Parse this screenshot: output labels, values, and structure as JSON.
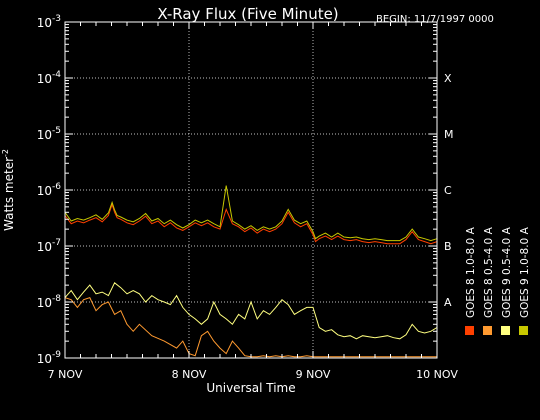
{
  "colors": {
    "background": "#000000",
    "axes": "#ffffff",
    "goes8_long": "#ff4000",
    "goes8_short": "#ff9a30",
    "goes9_short": "#ffff80",
    "goes9_long": "#c8c800"
  },
  "chart_data": {
    "type": "line",
    "title": "X-Ray Flux (Five Minute)",
    "begin_label": "BEGIN: 11/7/1997 0000",
    "ylabel": "Watts meter",
    "ylabel_superscript": "-2",
    "xlabel": "Universal Time",
    "y_scale": "log",
    "ylim": [
      1e-09,
      0.001
    ],
    "y_ticks": [
      {
        "value": 1e-09,
        "base": "10",
        "exp": "-9"
      },
      {
        "value": 1e-08,
        "base": "10",
        "exp": "-8"
      },
      {
        "value": 1e-07,
        "base": "10",
        "exp": "-7"
      },
      {
        "value": 1e-06,
        "base": "10",
        "exp": "-6"
      },
      {
        "value": 1e-05,
        "base": "10",
        "exp": "-5"
      },
      {
        "value": 0.0001,
        "base": "10",
        "exp": "-4"
      },
      {
        "value": 0.001,
        "base": "10",
        "exp": "-3"
      }
    ],
    "x_unit": "day",
    "xlim": [
      0,
      3
    ],
    "x_ticks": [
      {
        "value": 0,
        "label": "7 NOV"
      },
      {
        "value": 1,
        "label": "8 NOV"
      },
      {
        "value": 2,
        "label": "9 NOV"
      },
      {
        "value": 3,
        "label": "10 NOV"
      }
    ],
    "flare_classes": [
      {
        "label": "X",
        "value": 0.0001
      },
      {
        "label": "M",
        "value": 1e-05
      },
      {
        "label": "C",
        "value": 1e-06
      },
      {
        "label": "B",
        "value": 1e-07
      },
      {
        "label": "A",
        "value": 1e-08
      }
    ],
    "grid": true,
    "legend_position": "right",
    "series": [
      {
        "name": "GOES 8 1.0-8.0 A",
        "color_key": "goes8_long",
        "x": [
          0,
          0.05,
          0.1,
          0.15,
          0.2,
          0.25,
          0.3,
          0.35,
          0.38,
          0.4,
          0.42,
          0.45,
          0.5,
          0.55,
          0.6,
          0.65,
          0.7,
          0.75,
          0.8,
          0.85,
          0.9,
          0.95,
          1.0,
          1.05,
          1.1,
          1.15,
          1.2,
          1.25,
          1.3,
          1.35,
          1.4,
          1.45,
          1.5,
          1.55,
          1.6,
          1.65,
          1.7,
          1.75,
          1.8,
          1.85,
          1.9,
          1.95,
          2.0,
          2.02,
          2.05,
          2.1,
          2.15,
          2.2,
          2.25,
          2.3,
          2.35,
          2.4,
          2.45,
          2.5,
          2.55,
          2.6,
          2.65,
          2.7,
          2.75,
          2.8,
          2.85,
          2.9,
          2.95,
          3.0
        ],
        "y": [
          3.5e-07,
          2.5e-07,
          2.8e-07,
          2.6e-07,
          2.9e-07,
          3.2e-07,
          2.7e-07,
          3.5e-07,
          5.5e-07,
          4e-07,
          3.2e-07,
          3e-07,
          2.6e-07,
          2.4e-07,
          2.8e-07,
          3.4e-07,
          2.5e-07,
          2.8e-07,
          2.2e-07,
          2.6e-07,
          2.1e-07,
          1.9e-07,
          2.2e-07,
          2.6e-07,
          2.3e-07,
          2.6e-07,
          2.2e-07,
          2e-07,
          4.5e-07,
          2.5e-07,
          2.2e-07,
          1.8e-07,
          2.1e-07,
          1.7e-07,
          2e-07,
          1.8e-07,
          2e-07,
          2.5e-07,
          4e-07,
          2.6e-07,
          2.2e-07,
          2.5e-07,
          1.6e-07,
          1.2e-07,
          1.35e-07,
          1.5e-07,
          1.3e-07,
          1.5e-07,
          1.3e-07,
          1.25e-07,
          1.3e-07,
          1.2e-07,
          1.15e-07,
          1.2e-07,
          1.15e-07,
          1.1e-07,
          1.1e-07,
          1.1e-07,
          1.3e-07,
          1.8e-07,
          1.3e-07,
          1.2e-07,
          1.1e-07,
          1.2e-07
        ]
      },
      {
        "name": "GOES 8 0.5-4.0 A",
        "color_key": "goes8_short",
        "x": [
          0,
          0.05,
          0.1,
          0.15,
          0.2,
          0.25,
          0.3,
          0.35,
          0.4,
          0.45,
          0.5,
          0.55,
          0.6,
          0.7,
          0.8,
          0.9,
          0.95,
          1.0,
          1.05,
          1.1,
          1.15,
          1.2,
          1.25,
          1.3,
          1.35,
          1.4,
          1.45,
          1.5,
          1.55,
          1.6,
          1.65,
          1.7,
          1.75,
          1.8,
          1.85,
          1.9,
          1.95,
          2.0,
          2.05,
          2.1,
          2.2,
          2.3,
          2.35,
          2.4,
          2.5,
          2.6,
          2.7,
          2.75,
          2.8,
          2.9,
          3.0
        ],
        "y": [
          1.2e-08,
          1.1e-08,
          8e-09,
          1.1e-08,
          1.2e-08,
          7e-09,
          9e-09,
          1e-08,
          6e-09,
          7e-09,
          4e-09,
          3e-09,
          4e-09,
          2.5e-09,
          2e-09,
          1.5e-09,
          2e-09,
          1.2e-09,
          1.1e-09,
          2.5e-09,
          3e-09,
          2e-09,
          1.5e-09,
          1.2e-09,
          2e-09,
          1.5e-09,
          1.1e-09,
          1.05e-09,
          1.05e-09,
          1.1e-09,
          1.05e-09,
          1.1e-09,
          1.05e-09,
          1.1e-09,
          1.05e-09,
          1.05e-09,
          1.1e-09,
          1.05e-09,
          1.05e-09,
          1.05e-09,
          1.05e-09,
          1.05e-09,
          1.05e-09,
          1.05e-09,
          1.05e-09,
          1.05e-09,
          1.05e-09,
          1.05e-09,
          1.05e-09,
          1.05e-09,
          1.05e-09
        ]
      },
      {
        "name": "GOES 9 0.5-4.0 A",
        "color_key": "goes9_short",
        "x": [
          0,
          0.05,
          0.1,
          0.15,
          0.2,
          0.25,
          0.3,
          0.35,
          0.4,
          0.45,
          0.5,
          0.55,
          0.6,
          0.65,
          0.7,
          0.75,
          0.8,
          0.85,
          0.9,
          0.95,
          1.0,
          1.05,
          1.1,
          1.15,
          1.2,
          1.25,
          1.3,
          1.35,
          1.4,
          1.45,
          1.5,
          1.55,
          1.6,
          1.65,
          1.7,
          1.75,
          1.8,
          1.85,
          1.9,
          1.95,
          2.0,
          2.05,
          2.1,
          2.15,
          2.2,
          2.25,
          2.3,
          2.35,
          2.4,
          2.45,
          2.5,
          2.55,
          2.6,
          2.65,
          2.7,
          2.75,
          2.8,
          2.85,
          2.9,
          2.95,
          3.0
        ],
        "y": [
          1.2e-08,
          1.6e-08,
          1.1e-08,
          1.5e-08,
          2e-08,
          1.4e-08,
          1.5e-08,
          1.3e-08,
          2.2e-08,
          1.8e-08,
          1.4e-08,
          1.6e-08,
          1.4e-08,
          1e-08,
          1.3e-08,
          1.1e-08,
          1e-08,
          9e-09,
          1.3e-08,
          8e-09,
          6e-09,
          5e-09,
          4e-09,
          5e-09,
          1e-08,
          6e-09,
          5e-09,
          4e-09,
          6e-09,
          5e-09,
          1e-08,
          5e-09,
          7e-09,
          6e-09,
          8e-09,
          1.1e-08,
          9e-09,
          6e-09,
          7e-09,
          8e-09,
          8e-09,
          3.5e-09,
          3e-09,
          3.2e-09,
          2.6e-09,
          2.4e-09,
          2.5e-09,
          2.2e-09,
          2.5e-09,
          2.4e-09,
          2.3e-09,
          2.4e-09,
          2.5e-09,
          2.3e-09,
          2.2e-09,
          2.6e-09,
          4e-09,
          3e-09,
          2.8e-09,
          3e-09,
          3.5e-09
        ]
      },
      {
        "name": "GOES 9 1.0-8.0 A",
        "color_key": "goes9_long",
        "x": [
          0,
          0.05,
          0.1,
          0.15,
          0.2,
          0.25,
          0.3,
          0.35,
          0.38,
          0.4,
          0.42,
          0.45,
          0.5,
          0.55,
          0.6,
          0.65,
          0.7,
          0.75,
          0.8,
          0.85,
          0.9,
          0.95,
          1.0,
          1.05,
          1.1,
          1.15,
          1.2,
          1.25,
          1.3,
          1.35,
          1.4,
          1.45,
          1.5,
          1.55,
          1.6,
          1.65,
          1.7,
          1.75,
          1.8,
          1.85,
          1.9,
          1.95,
          2.0,
          2.02,
          2.05,
          2.1,
          2.15,
          2.2,
          2.25,
          2.3,
          2.35,
          2.4,
          2.45,
          2.5,
          2.55,
          2.6,
          2.65,
          2.7,
          2.75,
          2.8,
          2.85,
          2.9,
          2.95,
          3.0
        ],
        "y": [
          4e-07,
          2.8e-07,
          3.1e-07,
          2.9e-07,
          3.2e-07,
          3.6e-07,
          3e-07,
          3.9e-07,
          6e-07,
          4.4e-07,
          3.5e-07,
          3.3e-07,
          2.9e-07,
          2.7e-07,
          3.1e-07,
          3.8e-07,
          2.8e-07,
          3.1e-07,
          2.5e-07,
          2.9e-07,
          2.4e-07,
          2.1e-07,
          2.4e-07,
          2.9e-07,
          2.6e-07,
          2.9e-07,
          2.5e-07,
          2.2e-07,
          1.2e-06,
          2.8e-07,
          2.4e-07,
          2e-07,
          2.3e-07,
          1.9e-07,
          2.2e-07,
          2e-07,
          2.2e-07,
          2.8e-07,
          4.5e-07,
          2.9e-07,
          2.5e-07,
          2.8e-07,
          1.8e-07,
          1.35e-07,
          1.5e-07,
          1.7e-07,
          1.45e-07,
          1.7e-07,
          1.45e-07,
          1.4e-07,
          1.45e-07,
          1.35e-07,
          1.3e-07,
          1.35e-07,
          1.3e-07,
          1.25e-07,
          1.25e-07,
          1.25e-07,
          1.45e-07,
          2e-07,
          1.45e-07,
          1.35e-07,
          1.25e-07,
          1.35e-07
        ]
      }
    ]
  }
}
